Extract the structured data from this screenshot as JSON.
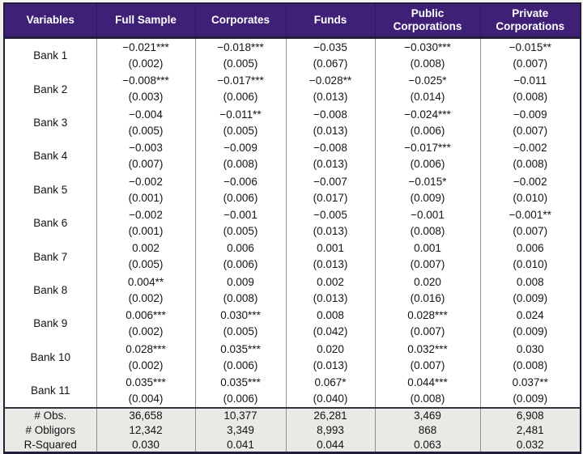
{
  "colors": {
    "header_bg": "#3e2176",
    "header_text": "#ffffff",
    "border_dark": "#241d3a",
    "grid_line": "#8f8f8f",
    "summary_bg": "#eae9e6",
    "body_text": "#141414"
  },
  "table": {
    "columns": [
      {
        "label": "Variables"
      },
      {
        "label": "Full Sample"
      },
      {
        "label": "Corporates"
      },
      {
        "label": "Funds"
      },
      {
        "label": "Public\nCorporations"
      },
      {
        "label": "Private\nCorporations"
      }
    ],
    "rows": [
      {
        "label": "Bank 1",
        "cells": [
          {
            "coef": "−0.021",
            "stars": "***",
            "se": "(0.002)"
          },
          {
            "coef": "−0.018",
            "stars": "***",
            "se": "(0.005)"
          },
          {
            "coef": "−0.035",
            "stars": "",
            "se": "(0.067)"
          },
          {
            "coef": "−0.030",
            "stars": "***",
            "se": "(0.008)"
          },
          {
            "coef": "−0.015",
            "stars": "**",
            "se": "(0.007)"
          }
        ]
      },
      {
        "label": "Bank 2",
        "cells": [
          {
            "coef": "−0.008",
            "stars": "***",
            "se": "(0.003)"
          },
          {
            "coef": "−0.017",
            "stars": "***",
            "se": "(0.006)"
          },
          {
            "coef": "−0.028",
            "stars": "**",
            "se": "(0.013)"
          },
          {
            "coef": "−0.025",
            "stars": "*",
            "se": "(0.014)"
          },
          {
            "coef": "−0.011",
            "stars": "",
            "se": "(0.008)"
          }
        ]
      },
      {
        "label": "Bank 3",
        "cells": [
          {
            "coef": "−0.004",
            "stars": "",
            "se": "(0.005)"
          },
          {
            "coef": "−0.011",
            "stars": "**",
            "se": "(0.005)"
          },
          {
            "coef": "−0.008",
            "stars": "",
            "se": "(0.013)"
          },
          {
            "coef": "−0.024",
            "stars": "***",
            "se": "(0.006)"
          },
          {
            "coef": "−0.009",
            "stars": "",
            "se": "(0.007)"
          }
        ]
      },
      {
        "label": "Bank 4",
        "cells": [
          {
            "coef": "−0.003",
            "stars": "",
            "se": "(0.007)"
          },
          {
            "coef": "−0.009",
            "stars": "",
            "se": "(0.008)"
          },
          {
            "coef": "−0.008",
            "stars": "",
            "se": "(0.013)"
          },
          {
            "coef": "−0.017",
            "stars": "***",
            "se": "(0.006)"
          },
          {
            "coef": "−0.002",
            "stars": "",
            "se": "(0.008)"
          }
        ]
      },
      {
        "label": "Bank 5",
        "cells": [
          {
            "coef": "−0.002",
            "stars": "",
            "se": "(0.001)"
          },
          {
            "coef": "−0.006",
            "stars": "",
            "se": "(0.006)"
          },
          {
            "coef": "−0.007",
            "stars": "",
            "se": "(0.017)"
          },
          {
            "coef": "−0.015",
            "stars": "*",
            "se": "(0.009)"
          },
          {
            "coef": "−0.002",
            "stars": "",
            "se": "(0.010)"
          }
        ]
      },
      {
        "label": "Bank 6",
        "cells": [
          {
            "coef": "−0.002",
            "stars": "",
            "se": "(0.001)"
          },
          {
            "coef": "−0.001",
            "stars": "",
            "se": "(0.005)"
          },
          {
            "coef": "−0.005",
            "stars": "",
            "se": "(0.013)"
          },
          {
            "coef": "−0.001",
            "stars": "",
            "se": "(0.008)"
          },
          {
            "coef": "−0.001",
            "stars": "**",
            "se": "(0.007)"
          }
        ]
      },
      {
        "label": "Bank 7",
        "cells": [
          {
            "coef": "0.002",
            "stars": "",
            "se": "(0.005)"
          },
          {
            "coef": "0.006",
            "stars": "",
            "se": "(0.006)"
          },
          {
            "coef": "0.001",
            "stars": "",
            "se": "(0.013)"
          },
          {
            "coef": "0.001",
            "stars": "",
            "se": "(0.007)"
          },
          {
            "coef": "0.006",
            "stars": "",
            "se": "(0.010)"
          }
        ]
      },
      {
        "label": "Bank 8",
        "cells": [
          {
            "coef": "0.004",
            "stars": "**",
            "se": "(0.002)"
          },
          {
            "coef": "0.009",
            "stars": "",
            "se": "(0.008)"
          },
          {
            "coef": "0.002",
            "stars": "",
            "se": "(0.013)"
          },
          {
            "coef": "0.020",
            "stars": "",
            "se": "(0.016)"
          },
          {
            "coef": "0.008",
            "stars": "",
            "se": "(0.009)"
          }
        ]
      },
      {
        "label": "Bank 9",
        "cells": [
          {
            "coef": "0.006",
            "stars": "***",
            "se": "(0.002)"
          },
          {
            "coef": "0.030",
            "stars": "***",
            "se": "(0.005)"
          },
          {
            "coef": "0.008",
            "stars": "",
            "se": "(0.042)"
          },
          {
            "coef": "0.028",
            "stars": "***",
            "se": "(0.007)"
          },
          {
            "coef": "0.024",
            "stars": "",
            "se": "(0.009)"
          }
        ]
      },
      {
        "label": "Bank 10",
        "cells": [
          {
            "coef": "0.028",
            "stars": "***",
            "se": "(0.002)"
          },
          {
            "coef": "0.035",
            "stars": "***",
            "se": "(0.006)"
          },
          {
            "coef": "0.020",
            "stars": "",
            "se": "(0.013)"
          },
          {
            "coef": "0.032",
            "stars": "***",
            "se": "(0.007)"
          },
          {
            "coef": "0.030",
            "stars": "",
            "se": "(0.008)"
          }
        ]
      },
      {
        "label": "Bank 11",
        "cells": [
          {
            "coef": "0.035",
            "stars": "***",
            "se": "(0.004)"
          },
          {
            "coef": "0.035",
            "stars": "***",
            "se": "(0.006)"
          },
          {
            "coef": "0.067",
            "stars": "*",
            "se": "(0.040)"
          },
          {
            "coef": "0.044",
            "stars": "***",
            "se": "(0.008)"
          },
          {
            "coef": "0.037",
            "stars": "**",
            "se": "(0.009)"
          }
        ]
      }
    ],
    "summary_rows": [
      {
        "label": "# Obs.",
        "values": [
          "36,658",
          "10,377",
          "26,281",
          "3,469",
          "6,908"
        ]
      },
      {
        "label": "# Obligors",
        "values": [
          "12,342",
          "3,349",
          "8,993",
          "868",
          "2,481"
        ]
      },
      {
        "label": "R-Squared",
        "values": [
          "0.030",
          "0.041",
          "0.044",
          "0.063",
          "0.032"
        ]
      }
    ]
  }
}
